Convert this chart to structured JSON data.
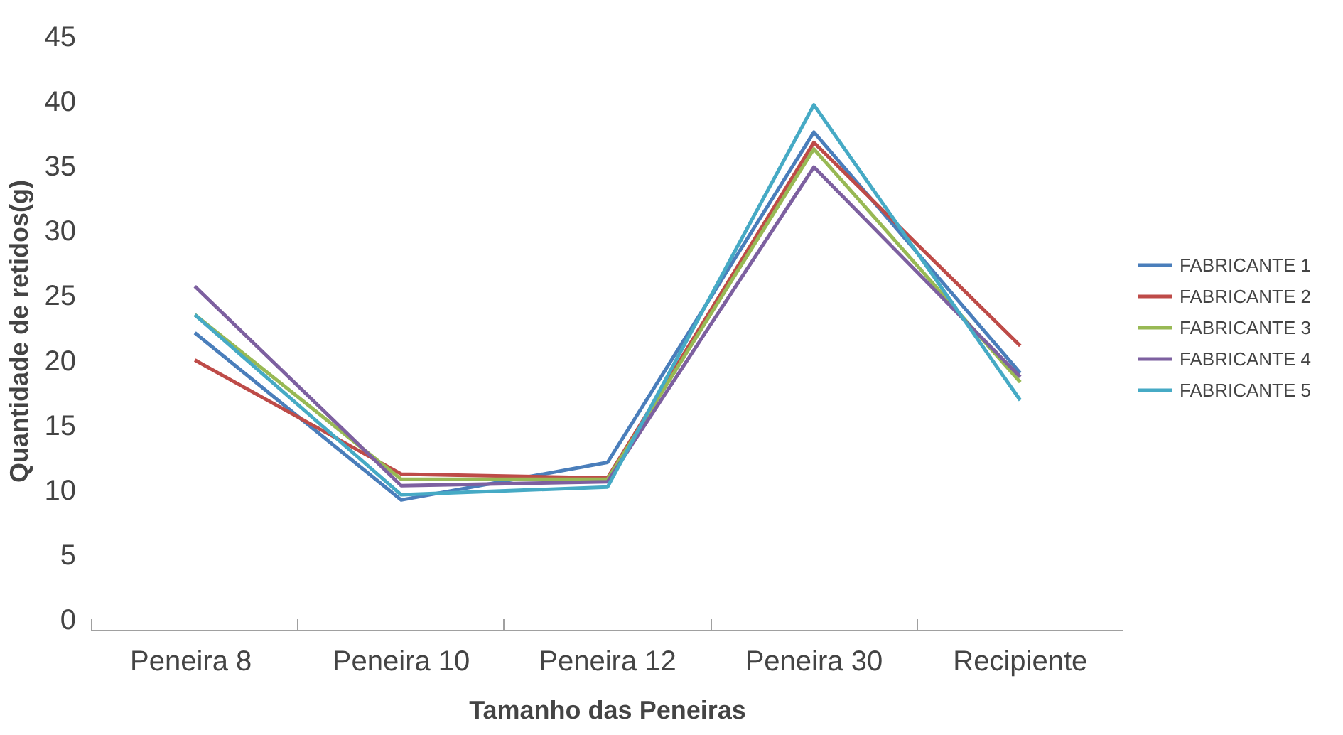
{
  "chart_data": {
    "type": "line",
    "xlabel": "Tamanho das Peneiras",
    "ylabel": "Quantidade de  retidos(g)",
    "categories": [
      "Peneira  8",
      "Peneira 10",
      "Peneira 12",
      "Peneira 30",
      "Recipiente"
    ],
    "ylim": [
      0,
      45
    ],
    "yticks": [
      0,
      5,
      10,
      15,
      20,
      25,
      30,
      35,
      40,
      45
    ],
    "grid": false,
    "legend": "right",
    "marker": "none",
    "series": [
      {
        "name": "FABRICANTE 1",
        "color": "#4a7ebb",
        "values": [
          22.1,
          9.2,
          12.1,
          37.6,
          19.0
        ]
      },
      {
        "name": "FABRICANTE 2",
        "color": "#be4b48",
        "values": [
          20.0,
          11.2,
          10.9,
          36.8,
          21.1
        ]
      },
      {
        "name": "FABRICANTE 3",
        "color": "#98b954",
        "values": [
          23.5,
          10.8,
          10.8,
          36.3,
          18.3
        ]
      },
      {
        "name": "FABRICANTE 4",
        "color": "#7d60a0",
        "values": [
          25.7,
          10.3,
          10.6,
          34.9,
          18.7
        ]
      },
      {
        "name": "FABRICANTE 5",
        "color": "#46aac5",
        "values": [
          23.5,
          9.6,
          10.2,
          39.7,
          16.9
        ]
      }
    ]
  }
}
